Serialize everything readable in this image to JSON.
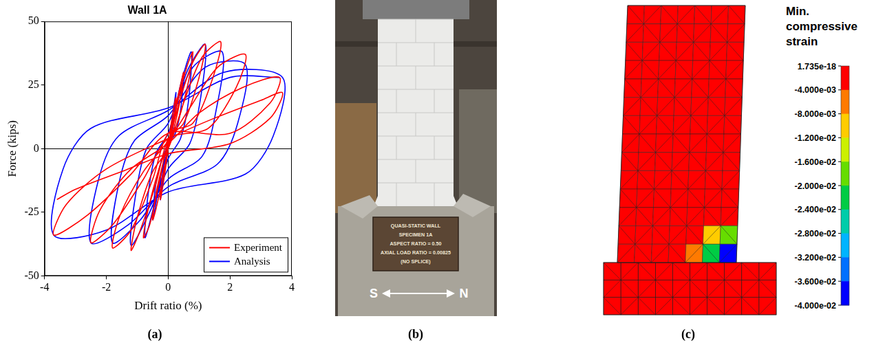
{
  "panel_labels": [
    "(a)",
    "(b)",
    "(c)"
  ],
  "chart_data": {
    "type": "line",
    "title": "Wall 1A",
    "x_label": "Drift ratio (%)",
    "y_label": "Force (kips)",
    "xlim": [
      -4,
      4
    ],
    "xticks": [
      -4,
      -2,
      0,
      2,
      4
    ],
    "ylim": [
      -50,
      50
    ],
    "yticks": [
      -50,
      -25,
      0,
      25,
      50
    ],
    "grid": false,
    "legend": "lower right",
    "series": [
      {
        "name": "Experiment",
        "color": "#ff0000",
        "x": [
          0,
          0.1,
          0.25,
          0.2,
          0.05,
          0,
          -0.1,
          -0.25,
          -0.2,
          -0.05,
          0,
          0.2,
          0.4,
          0.5,
          0.4,
          0.15,
          0,
          -0.2,
          -0.4,
          -0.5,
          -0.4,
          -0.15,
          0,
          0.3,
          0.6,
          0.8,
          0.65,
          0.3,
          0,
          -0.3,
          -0.6,
          -0.8,
          -0.65,
          -0.3,
          0,
          0.4,
          0.8,
          1.2,
          1.0,
          0.5,
          0,
          -0.4,
          -0.9,
          -1.2,
          -1.0,
          -0.5,
          0,
          0.5,
          1.1,
          1.7,
          1.45,
          0.8,
          0,
          -0.5,
          -1.2,
          -1.8,
          -1.55,
          -0.8,
          0,
          0.7,
          1.6,
          2.5,
          2.2,
          1.3,
          0,
          -0.8,
          -1.8,
          -2.5,
          -2.2,
          -1.2,
          0,
          1.0,
          2.4,
          3.6,
          3.3,
          2.0,
          0,
          -1.2,
          -2.6,
          -3.7,
          -3.3,
          -2.0,
          0,
          1.5,
          3.0,
          3.7,
          3.3,
          2.0,
          0,
          -1.5,
          -3.0,
          -3.6
        ],
        "values": [
          0,
          10,
          20,
          12,
          3,
          0,
          -9,
          -20,
          -12,
          -3,
          0,
          14,
          25,
          30,
          20,
          6,
          0,
          -13,
          -24,
          -28,
          -18,
          -5,
          1,
          18,
          32,
          38,
          26,
          10,
          3,
          -14,
          -30,
          -35,
          -24,
          -8,
          2,
          20,
          34,
          41,
          28,
          10,
          4,
          -14,
          -32,
          -40,
          -27,
          -9,
          0,
          18,
          36,
          42,
          28,
          10,
          6,
          -12,
          -32,
          -39,
          -26,
          -9,
          3,
          16,
          32,
          37,
          24,
          8,
          4,
          -12,
          -30,
          -37,
          -24,
          -8,
          2,
          14,
          24,
          28,
          18,
          6,
          6,
          -10,
          -26,
          -34,
          -22,
          -8,
          4,
          12,
          19,
          22,
          12,
          2,
          -2,
          -9,
          -16,
          -20
        ]
      },
      {
        "name": "Analysis",
        "color": "#0000ff",
        "x": [
          0,
          0.25,
          0.15,
          0,
          -0.25,
          -0.15,
          0,
          0.5,
          0.4,
          0.2,
          0,
          -0.3,
          -0.5,
          -0.4,
          -0.2,
          0,
          0.4,
          0.75,
          0.65,
          0.4,
          0,
          -0.4,
          -0.75,
          -0.65,
          -0.4,
          0,
          0.6,
          1.2,
          1.05,
          0.7,
          0,
          -0.6,
          -1.2,
          -1.05,
          -0.7,
          0,
          0.8,
          1.75,
          1.55,
          1.1,
          0,
          -0.9,
          -1.8,
          -1.6,
          -1.1,
          0,
          1.2,
          2.5,
          2.25,
          1.6,
          0,
          -1.3,
          -2.5,
          -2.25,
          -1.6,
          0,
          1.8,
          3.7,
          3.4,
          2.5,
          0,
          -2.0,
          -3.7,
          -3.4,
          -2.5,
          0,
          2.0,
          3.6
        ],
        "values": [
          0,
          22,
          8,
          2,
          -20,
          -7,
          0,
          30,
          15,
          5,
          3,
          -15,
          -28,
          -14,
          -4,
          2,
          25,
          38,
          18,
          4,
          -4,
          -20,
          -35,
          -18,
          -2,
          6,
          30,
          41,
          20,
          2,
          -8,
          -25,
          -38,
          -18,
          0,
          10,
          32,
          38,
          15,
          -3,
          -12,
          -28,
          -37,
          -14,
          3,
          13,
          32,
          33,
          10,
          -6,
          -15,
          -30,
          -37,
          -12,
          5,
          15,
          30,
          28,
          5,
          -10,
          -17,
          -32,
          -34,
          -8,
          8,
          16,
          28,
          28
        ]
      }
    ]
  },
  "photo": {
    "plaque": [
      "QUASI-STATIC WALL",
      "SPECIMEN 1A",
      "ASPECT RATIO = 0.50",
      "AXIAL LOAD RATIO = 0.00825",
      "(NO SPLICE)"
    ],
    "direction": {
      "left": "S",
      "right": "N"
    }
  },
  "contour": {
    "title": "Min. compressive strain",
    "colorbar": {
      "ticks": [
        {
          "value": 1.735e-18,
          "label": "1.735e-18"
        },
        {
          "value": -0.004,
          "label": "-4.000e-03"
        },
        {
          "value": -0.008,
          "label": "-8.000e-03"
        },
        {
          "value": -0.012,
          "label": "-1.200e-02"
        },
        {
          "value": -0.016,
          "label": "-1.600e-02"
        },
        {
          "value": -0.02,
          "label": "-2.000e-02"
        },
        {
          "value": -0.024,
          "label": "-2.400e-02"
        },
        {
          "value": -0.028,
          "label": "-2.800e-02"
        },
        {
          "value": -0.032,
          "label": "-3.200e-02"
        },
        {
          "value": -0.036,
          "label": "-3.600e-02"
        },
        {
          "value": -0.04,
          "label": "-4.000e-02"
        }
      ],
      "colors": [
        "#ff0000",
        "#ff7a00",
        "#ffcc00",
        "#ccf000",
        "#66dd00",
        "#00cc44",
        "#00ccaa",
        "#00b4ff",
        "#0070ff",
        "#0000ff"
      ]
    },
    "cells": [
      [
        0,
        0,
        0,
        0,
        0,
        0,
        0
      ],
      [
        0,
        0,
        0,
        0,
        0,
        0,
        0
      ],
      [
        0,
        0,
        0,
        0,
        0,
        0,
        0
      ],
      [
        0,
        0,
        0,
        0,
        0,
        0,
        0
      ],
      [
        0,
        0,
        0,
        0,
        0,
        0,
        0
      ],
      [
        0,
        0,
        0,
        0,
        0,
        0,
        0
      ],
      [
        0,
        0,
        0,
        0,
        0,
        0,
        0
      ],
      [
        0,
        0,
        0,
        0,
        0,
        0,
        0
      ],
      [
        0,
        0,
        0,
        0,
        0,
        0,
        0
      ],
      [
        0,
        0,
        0,
        0,
        0,
        0,
        0
      ],
      [
        0,
        0,
        0,
        0,
        0,
        0,
        0
      ],
      [
        0,
        0,
        0,
        0,
        0,
        0,
        0
      ],
      [
        0,
        0,
        0,
        0,
        0,
        -0.01,
        -0.018
      ],
      [
        0,
        0,
        0,
        0,
        -0.006,
        -0.022,
        -0.038
      ]
    ]
  }
}
